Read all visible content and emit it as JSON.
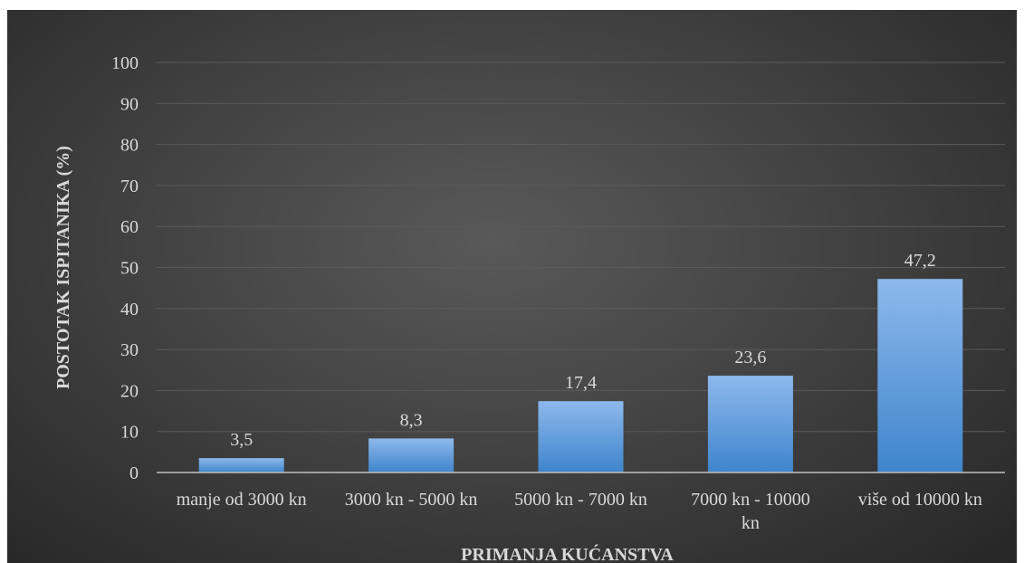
{
  "chart_data": {
    "type": "bar",
    "title": "",
    "xlabel": "PRIMANJA KUĆANSTVA",
    "ylabel": "POSTOTAK ISPITANIKA (%)",
    "categories": [
      [
        "manje od 3000 kn"
      ],
      [
        "3000 kn - 5000 kn"
      ],
      [
        "5000 kn - 7000 kn"
      ],
      [
        "7000 kn - 10000",
        "kn"
      ],
      [
        "više od 10000 kn"
      ]
    ],
    "values": [
      3.5,
      8.3,
      17.4,
      23.6,
      47.2
    ],
    "value_labels": [
      "3,5",
      "8,3",
      "17,4",
      "23,6",
      "47,2"
    ],
    "ylim": [
      0,
      100
    ],
    "yticks": [
      0,
      10,
      20,
      30,
      40,
      50,
      60,
      70,
      80,
      90,
      100
    ],
    "grid": true,
    "legend": "none",
    "colors": {
      "bar_top": "#8db9ec",
      "bar_bottom": "#3f84cc",
      "text": "#d9d9d9",
      "grid": "#5a5a5a",
      "axis": "#bfbfbf"
    }
  }
}
